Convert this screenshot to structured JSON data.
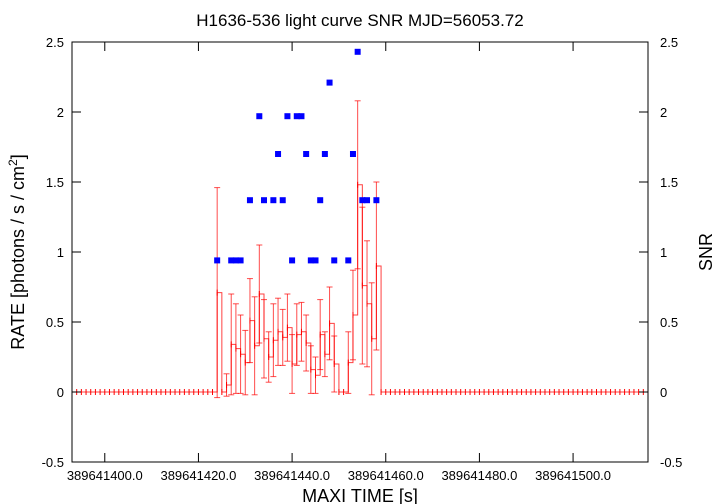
{
  "chart_data": {
    "type": "scatter",
    "title": "H1636-536 light curve  SNR MJD=56053.72",
    "xlabel": "MAXI TIME [s]",
    "ylabel_prefix": "RATE [photons / s / cm",
    "ylabel_sup": "2",
    "ylabel_suffix": "]",
    "y2label": "SNR",
    "xlim": [
      389641393.0,
      389641516.0
    ],
    "ylim": [
      -0.5,
      2.5
    ],
    "y2lim": [
      -0.5,
      2.5
    ],
    "x_ticks": [
      389641400.0,
      389641420.0,
      389641440.0,
      389641460.0,
      389641480.0,
      389641500.0
    ],
    "x_tick_labels": [
      "389641400.0",
      "389641420.0",
      "389641440.0",
      "389641460.0",
      "389641480.0",
      "389641500.0"
    ],
    "y_ticks": [
      -0.5,
      0,
      0.5,
      1,
      1.5,
      2,
      2.5
    ],
    "y_tick_labels": [
      "-0.5",
      "0",
      "0.5",
      "1",
      "1.5",
      "2",
      "2.5"
    ],
    "y2_ticks": [
      -0.5,
      0,
      0.5,
      1,
      1.5,
      2,
      2.5
    ],
    "y2_tick_labels": [
      "-0.5",
      "0",
      "0.5",
      "1",
      "1.5",
      "2",
      "2.5"
    ],
    "grid": false,
    "colors": {
      "rate": "#ff0000",
      "snr": "#0000ff"
    },
    "rate_zero_range": [
      389641393.0,
      389641516.0
    ],
    "rate_zero_step": 1.0,
    "series": [
      {
        "kind": "rate",
        "points": [
          {
            "x": 389641424.0,
            "y": 0.71,
            "err": 0.75
          },
          {
            "x": 389641425.0,
            "y": 0.0,
            "err": 0.0
          },
          {
            "x": 389641426.0,
            "y": 0.05,
            "err": 0.08
          },
          {
            "x": 389641427.0,
            "y": 0.34,
            "err": 0.36
          },
          {
            "x": 389641428.0,
            "y": 0.31,
            "err": 0.32
          },
          {
            "x": 389641429.0,
            "y": 0.27,
            "err": 0.28
          },
          {
            "x": 389641430.0,
            "y": 0.21,
            "err": 0.23
          },
          {
            "x": 389641431.0,
            "y": 0.51,
            "err": 0.3
          },
          {
            "x": 389641432.0,
            "y": 0.33,
            "err": 0.35
          },
          {
            "x": 389641433.0,
            "y": 0.7,
            "err": 0.35
          },
          {
            "x": 389641434.0,
            "y": 0.38,
            "err": 0.28
          },
          {
            "x": 389641435.0,
            "y": 0.25,
            "err": 0.18
          },
          {
            "x": 389641436.0,
            "y": 0.37,
            "err": 0.26
          },
          {
            "x": 389641437.0,
            "y": 0.43,
            "err": 0.24
          },
          {
            "x": 389641438.0,
            "y": 0.39,
            "err": 0.2
          },
          {
            "x": 389641439.0,
            "y": 0.46,
            "err": 0.24
          },
          {
            "x": 389641440.0,
            "y": 0.2,
            "err": 0.21
          },
          {
            "x": 389641441.0,
            "y": 0.41,
            "err": 0.22
          },
          {
            "x": 389641442.0,
            "y": 0.43,
            "err": 0.21
          },
          {
            "x": 389641443.0,
            "y": 0.35,
            "err": 0.2
          },
          {
            "x": 389641444.0,
            "y": 0.16,
            "err": 0.17
          },
          {
            "x": 389641445.0,
            "y": 0.12,
            "err": 0.13
          },
          {
            "x": 389641446.0,
            "y": 0.41,
            "err": 0.25
          },
          {
            "x": 389641447.0,
            "y": 0.27,
            "err": 0.16
          },
          {
            "x": 389641448.0,
            "y": 0.49,
            "err": 0.26
          },
          {
            "x": 389641449.0,
            "y": 0.2,
            "err": 0.2
          },
          {
            "x": 389641450.0,
            "y": 0.0,
            "err": 0.0
          },
          {
            "x": 389641451.0,
            "y": 0.0,
            "err": 0.0
          },
          {
            "x": 389641452.0,
            "y": 0.21,
            "err": 0.22
          },
          {
            "x": 389641453.0,
            "y": 0.55,
            "err": 0.32
          },
          {
            "x": 389641454.0,
            "y": 1.48,
            "err": 0.6
          },
          {
            "x": 389641455.0,
            "y": 0.76,
            "err": 0.56
          },
          {
            "x": 389641456.0,
            "y": 0.63,
            "err": 0.45
          },
          {
            "x": 389641457.0,
            "y": 0.38,
            "err": 0.4
          },
          {
            "x": 389641458.0,
            "y": 0.9,
            "err": 0.6
          }
        ]
      },
      {
        "kind": "snr",
        "points": [
          {
            "x": 389641424.0,
            "y": 0.94
          },
          {
            "x": 389641427.0,
            "y": 0.94
          },
          {
            "x": 389641428.0,
            "y": 0.94
          },
          {
            "x": 389641429.0,
            "y": 0.94
          },
          {
            "x": 389641431.0,
            "y": 1.37
          },
          {
            "x": 389641433.0,
            "y": 1.97
          },
          {
            "x": 389641434.0,
            "y": 1.37
          },
          {
            "x": 389641436.0,
            "y": 1.37
          },
          {
            "x": 389641437.0,
            "y": 1.7
          },
          {
            "x": 389641438.0,
            "y": 1.37
          },
          {
            "x": 389641439.0,
            "y": 1.97
          },
          {
            "x": 389641440.0,
            "y": 0.94
          },
          {
            "x": 389641441.0,
            "y": 1.97
          },
          {
            "x": 389641442.0,
            "y": 1.97
          },
          {
            "x": 389641443.0,
            "y": 1.7
          },
          {
            "x": 389641444.0,
            "y": 0.94
          },
          {
            "x": 389641445.0,
            "y": 0.94
          },
          {
            "x": 389641446.0,
            "y": 1.37
          },
          {
            "x": 389641447.0,
            "y": 1.7
          },
          {
            "x": 389641448.0,
            "y": 2.21
          },
          {
            "x": 389641449.0,
            "y": 0.94
          },
          {
            "x": 389641452.0,
            "y": 0.94
          },
          {
            "x": 389641453.0,
            "y": 1.7
          },
          {
            "x": 389641454.0,
            "y": 2.43
          },
          {
            "x": 389641455.0,
            "y": 1.37
          },
          {
            "x": 389641456.0,
            "y": 1.37
          },
          {
            "x": 389641458.0,
            "y": 1.37
          }
        ]
      }
    ]
  }
}
